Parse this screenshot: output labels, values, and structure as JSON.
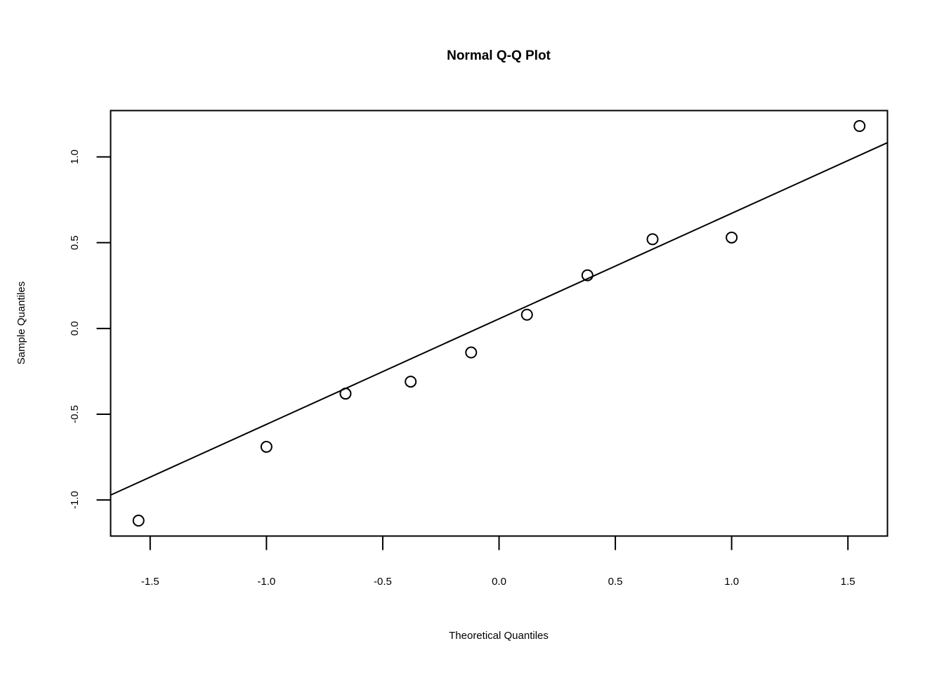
{
  "chart_data": {
    "type": "scatter",
    "title": "Normal Q-Q Plot",
    "xlabel": "Theoretical Quantiles",
    "ylabel": "Sample Quantiles",
    "x_ticks": [
      "-1.5",
      "-1.0",
      "-0.5",
      "0.0",
      "0.5",
      "1.0",
      "1.5"
    ],
    "y_ticks": [
      "-1.0",
      "-0.5",
      "0.0",
      "0.5",
      "1.0"
    ],
    "xlim": [
      -1.67,
      1.67
    ],
    "ylim": [
      -1.21,
      1.27
    ],
    "grid": false,
    "points": [
      {
        "x": -1.55,
        "y": -1.12
      },
      {
        "x": -1.0,
        "y": -0.69
      },
      {
        "x": -0.66,
        "y": -0.38
      },
      {
        "x": -0.38,
        "y": -0.31
      },
      {
        "x": -0.12,
        "y": -0.14
      },
      {
        "x": 0.12,
        "y": 0.08
      },
      {
        "x": 0.38,
        "y": 0.31
      },
      {
        "x": 0.66,
        "y": 0.52
      },
      {
        "x": 1.0,
        "y": 0.53
      },
      {
        "x": 1.55,
        "y": 1.18
      }
    ],
    "reference_line": {
      "intercept": 0.056,
      "slope": 0.615
    }
  }
}
